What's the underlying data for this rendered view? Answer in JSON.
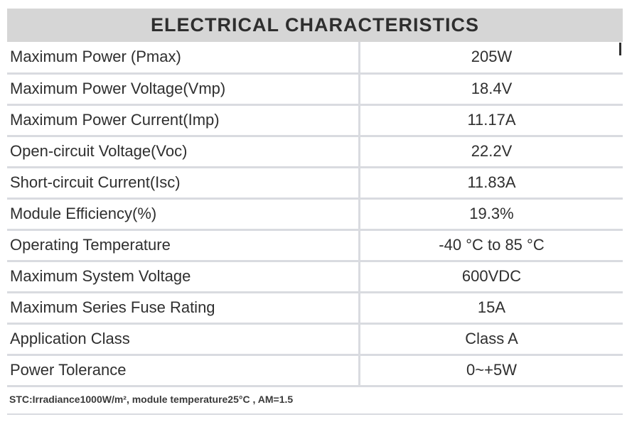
{
  "title": "ELECTRICAL CHARACTERISTICS",
  "rows": [
    {
      "parameter": "Maximum Power (Pmax)",
      "value": "205W"
    },
    {
      "parameter": "Maximum Power Voltage(Vmp)",
      "value": "18.4V"
    },
    {
      "parameter": "Maximum Power Current(Imp)",
      "value": "11.17A"
    },
    {
      "parameter": "Open-circuit Voltage(Voc)",
      "value": "22.2V"
    },
    {
      "parameter": "Short-circuit Current(Isc)",
      "value": "11.83A"
    },
    {
      "parameter": "Module Efficiency(%)",
      "value": "19.3%"
    },
    {
      "parameter": "Operating Temperature",
      "value": "-40 °C to 85 °C"
    },
    {
      "parameter": "Maximum System Voltage",
      "value": "600VDC"
    },
    {
      "parameter": "Maximum Series Fuse Rating",
      "value": "15A"
    },
    {
      "parameter": "Application  Class",
      "value": "Class A"
    },
    {
      "parameter": "Power  Tolerance",
      "value": "0~+5W"
    }
  ],
  "footnote": "STC:Irradiance1000W/m², module temperature25°C , AM=1.5",
  "colors": {
    "header_bg": "#d6d6d6",
    "grid_line": "#d9dbe0",
    "text": "#2f2f2f"
  }
}
